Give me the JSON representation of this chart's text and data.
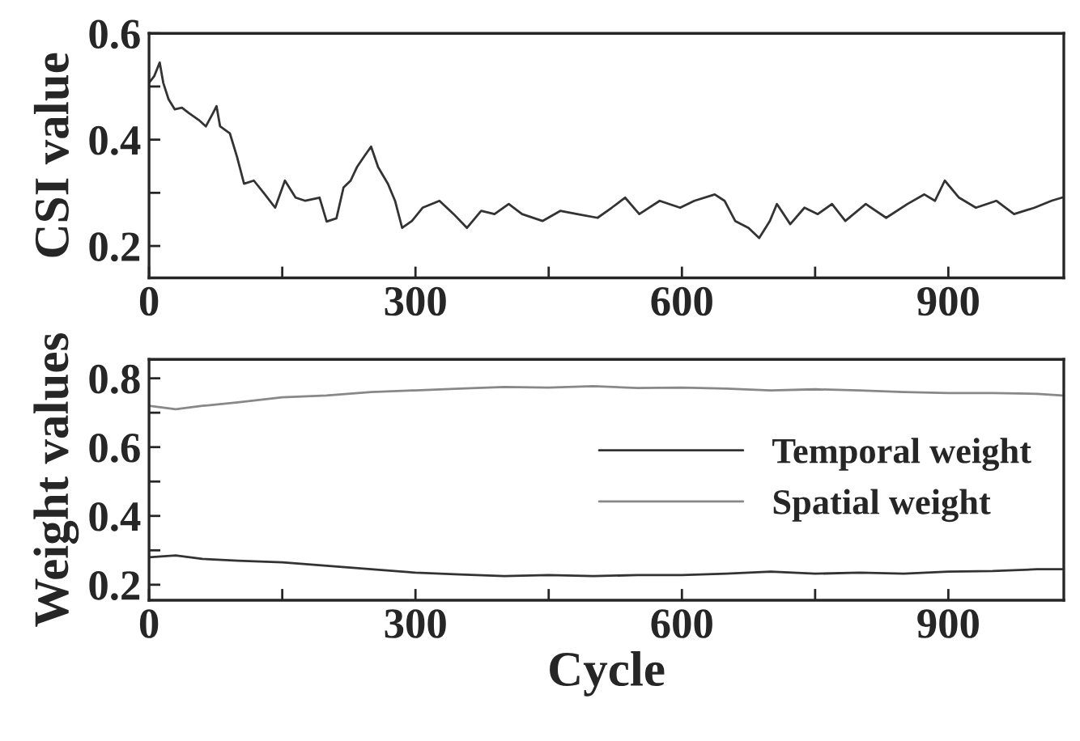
{
  "chart_data": [
    {
      "type": "line",
      "ylabel": "CSI value",
      "xlim": [
        0,
        1030
      ],
      "ylim": [
        0.14,
        0.6
      ],
      "xticks": [
        0,
        {
          "value": 150,
          "label": null
        },
        300,
        {
          "value": 450,
          "label": null
        },
        600,
        {
          "value": 750,
          "label": null
        },
        900
      ],
      "yticks": [
        {
          "value": 0.2,
          "label": "0.2"
        },
        {
          "value": 0.3,
          "label": null
        },
        {
          "value": 0.4,
          "label": "0.4"
        },
        {
          "value": 0.5,
          "label": null
        },
        {
          "value": 0.6,
          "label": "0.6"
        }
      ],
      "grid": false,
      "legend": false,
      "series": [
        {
          "color": "#333333",
          "x": [
            0,
            6,
            12,
            16,
            22,
            29,
            37,
            45,
            56,
            64,
            72,
            76,
            80,
            91,
            99,
            107,
            118,
            130,
            142,
            153,
            165,
            176,
            192,
            200,
            211,
            219,
            227,
            234,
            242,
            250,
            258,
            269,
            277,
            285,
            296,
            308,
            327,
            343,
            358,
            374,
            389,
            405,
            420,
            443,
            463,
            482,
            505,
            521,
            536,
            552,
            575,
            598,
            614,
            637,
            648,
            660,
            675,
            687,
            699,
            707,
            722,
            738,
            753,
            769,
            784,
            807,
            830,
            854,
            873,
            885,
            896,
            912,
            931,
            954,
            974,
            997,
            1016,
            1028
          ],
          "values": [
            0.507,
            0.52,
            0.545,
            0.507,
            0.476,
            0.457,
            0.46,
            0.45,
            0.437,
            0.425,
            0.45,
            0.463,
            0.425,
            0.412,
            0.368,
            0.317,
            0.323,
            0.298,
            0.272,
            0.323,
            0.291,
            0.285,
            0.291,
            0.246,
            0.252,
            0.31,
            0.323,
            0.348,
            0.368,
            0.387,
            0.348,
            0.317,
            0.285,
            0.234,
            0.247,
            0.272,
            0.285,
            0.26,
            0.234,
            0.266,
            0.26,
            0.279,
            0.26,
            0.247,
            0.266,
            0.26,
            0.253,
            0.272,
            0.291,
            0.26,
            0.285,
            0.272,
            0.285,
            0.297,
            0.285,
            0.247,
            0.234,
            0.215,
            0.247,
            0.279,
            0.241,
            0.272,
            0.26,
            0.279,
            0.247,
            0.279,
            0.253,
            0.279,
            0.297,
            0.285,
            0.323,
            0.291,
            0.272,
            0.285,
            0.26,
            0.272,
            0.285,
            0.291
          ]
        }
      ]
    },
    {
      "type": "line",
      "xlabel": "Cycle",
      "ylabel": "Weight values",
      "xlim": [
        0,
        1030
      ],
      "ylim": [
        0.155,
        0.855
      ],
      "xticks": [
        0,
        {
          "value": 150,
          "label": null
        },
        300,
        {
          "value": 450,
          "label": null
        },
        600,
        {
          "value": 750,
          "label": null
        },
        900
      ],
      "yticks": [
        {
          "value": 0.2,
          "label": "0.2"
        },
        {
          "value": 0.3,
          "label": null
        },
        {
          "value": 0.4,
          "label": "0.4"
        },
        {
          "value": 0.5,
          "label": null
        },
        {
          "value": 0.6,
          "label": "0.6"
        },
        {
          "value": 0.7,
          "label": null
        },
        {
          "value": 0.8,
          "label": "0.8"
        }
      ],
      "grid": false,
      "legend": "center right",
      "series": [
        {
          "name": "Temporal weight",
          "color": "#333333",
          "x": [
            0,
            30,
            60,
            100,
            150,
            200,
            250,
            300,
            350,
            400,
            450,
            500,
            550,
            600,
            650,
            700,
            750,
            800,
            850,
            900,
            950,
            1000,
            1028
          ],
          "values": [
            0.28,
            0.285,
            0.275,
            0.27,
            0.265,
            0.255,
            0.245,
            0.235,
            0.23,
            0.225,
            0.228,
            0.225,
            0.228,
            0.228,
            0.232,
            0.238,
            0.232,
            0.235,
            0.232,
            0.238,
            0.24,
            0.245,
            0.245
          ]
        },
        {
          "name": "Spatial weight",
          "color": "#888888",
          "x": [
            0,
            30,
            60,
            100,
            150,
            200,
            250,
            300,
            350,
            400,
            450,
            500,
            550,
            600,
            650,
            700,
            750,
            800,
            850,
            900,
            950,
            1000,
            1028
          ],
          "values": [
            0.72,
            0.71,
            0.72,
            0.73,
            0.745,
            0.75,
            0.76,
            0.765,
            0.77,
            0.775,
            0.773,
            0.777,
            0.772,
            0.773,
            0.77,
            0.765,
            0.768,
            0.765,
            0.76,
            0.757,
            0.757,
            0.755,
            0.75
          ]
        }
      ]
    }
  ]
}
